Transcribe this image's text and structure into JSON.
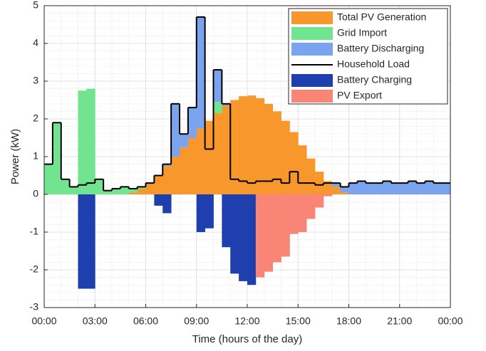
{
  "chart_data": {
    "type": "step-area",
    "xlabel": "Time (hours of the day)",
    "ylabel": "Power (kW)",
    "xlim": [
      0,
      24
    ],
    "xticks": [
      {
        "value": 0,
        "label": "00:00"
      },
      {
        "value": 3,
        "label": "03:00"
      },
      {
        "value": 6,
        "label": "06:00"
      },
      {
        "value": 9,
        "label": "09:00"
      },
      {
        "value": 12,
        "label": "12:00"
      },
      {
        "value": 15,
        "label": "15:00"
      },
      {
        "value": 18,
        "label": "18:00"
      },
      {
        "value": 21,
        "label": "21:00"
      },
      {
        "value": 24,
        "label": "00:00"
      }
    ],
    "ylim": [
      -3,
      5
    ],
    "yticks": [
      -3,
      -2,
      -1,
      0,
      1,
      2,
      3,
      4,
      5
    ],
    "grid": true,
    "minor_grid": true,
    "legend": "upper right",
    "x": [
      0,
      0.5,
      1,
      1.5,
      2,
      2.5,
      3,
      3.5,
      4,
      4.5,
      5,
      5.5,
      6,
      6.5,
      7,
      7.5,
      8,
      8.5,
      9,
      9.5,
      10,
      10.5,
      11,
      11.5,
      12,
      12.5,
      13,
      13.5,
      14,
      14.5,
      15,
      15.5,
      16,
      16.5,
      17,
      17.5,
      18,
      18.5,
      19,
      19.5,
      20,
      20.5,
      21,
      21.5,
      22,
      22.5,
      23,
      23.5
    ],
    "series": [
      {
        "name": "Total PV Generation",
        "color": "#f7972c",
        "type": "area",
        "values": [
          0,
          0,
          0,
          0,
          0,
          0,
          0,
          0,
          0,
          0,
          0.05,
          0.15,
          0.3,
          0.5,
          0.75,
          1.0,
          1.25,
          1.5,
          1.75,
          1.95,
          2.15,
          2.35,
          2.5,
          2.6,
          2.62,
          2.55,
          2.4,
          2.2,
          1.95,
          1.65,
          1.3,
          0.95,
          0.6,
          0.35,
          0.2,
          0.05,
          0,
          0,
          0,
          0,
          0,
          0,
          0,
          0,
          0,
          0,
          0,
          0
        ]
      },
      {
        "name": "Grid Import",
        "color": "#72e38f",
        "type": "area",
        "values": [
          0.8,
          1.9,
          0.4,
          0.2,
          2.75,
          2.8,
          0.4,
          0.1,
          0.15,
          0.2,
          0.1,
          0.05,
          0,
          0,
          0,
          0,
          0,
          0,
          0,
          0,
          0.3,
          0,
          0,
          0,
          0,
          0,
          0,
          0,
          0,
          0,
          0,
          0,
          0,
          0,
          0,
          0,
          0,
          0,
          0,
          0,
          0,
          0,
          0,
          0,
          0,
          0,
          0,
          0
        ]
      },
      {
        "name": "Battery Discharging",
        "color": "#7ba4ee",
        "type": "area",
        "values": [
          0,
          0,
          0,
          0,
          0,
          0,
          0,
          0,
          0,
          0,
          0,
          0,
          0,
          0,
          0.05,
          1.4,
          0.35,
          0.8,
          2.95,
          0,
          0.85,
          0.05,
          0,
          0,
          0,
          0,
          0,
          0,
          0,
          0,
          0,
          0,
          0,
          0,
          0.1,
          0.15,
          0.3,
          0.35,
          0.3,
          0.3,
          0.35,
          0.3,
          0.3,
          0.35,
          0.3,
          0.35,
          0.3,
          0.3
        ]
      },
      {
        "name": "Household Load",
        "color": "#000000",
        "type": "line",
        "values": [
          0.8,
          1.9,
          0.4,
          0.2,
          0.25,
          0.3,
          0.4,
          0.1,
          0.15,
          0.2,
          0.15,
          0.2,
          0.3,
          0.5,
          0.8,
          2.4,
          1.6,
          2.3,
          4.7,
          1.2,
          3.3,
          2.4,
          0.4,
          0.35,
          0.3,
          0.35,
          0.35,
          0.4,
          0.3,
          0.6,
          0.3,
          0.3,
          0.25,
          0.3,
          0.3,
          0.2,
          0.3,
          0.35,
          0.3,
          0.3,
          0.35,
          0.3,
          0.3,
          0.35,
          0.3,
          0.35,
          0.3,
          0.3
        ]
      },
      {
        "name": "Battery Charging",
        "color": "#1f3fae",
        "type": "area",
        "values": [
          0,
          0,
          0,
          0,
          -2.5,
          -2.5,
          0,
          0,
          0,
          0,
          0,
          0,
          0,
          -0.3,
          -0.5,
          0,
          0,
          0,
          -1.0,
          -0.9,
          0,
          -1.4,
          -2.1,
          -2.3,
          -2.4,
          0,
          0,
          0,
          0,
          0,
          0,
          0,
          0,
          0,
          0,
          0,
          0,
          0,
          0,
          0,
          0,
          0,
          0,
          0,
          0,
          0,
          0,
          0
        ]
      },
      {
        "name": "PV Export",
        "color": "#f98577",
        "type": "area",
        "values": [
          0,
          0,
          0,
          0,
          0,
          0,
          0,
          0,
          0,
          0,
          0,
          0,
          0,
          0,
          0,
          0,
          0,
          0,
          0,
          0,
          0,
          0,
          0,
          0,
          0,
          -2.2,
          -2.05,
          -1.8,
          -1.65,
          -1.05,
          -1.0,
          -0.65,
          -0.35,
          -0.05,
          0,
          0,
          0,
          0,
          0,
          0,
          0,
          0,
          0,
          0,
          0,
          0,
          0,
          0
        ]
      }
    ]
  }
}
